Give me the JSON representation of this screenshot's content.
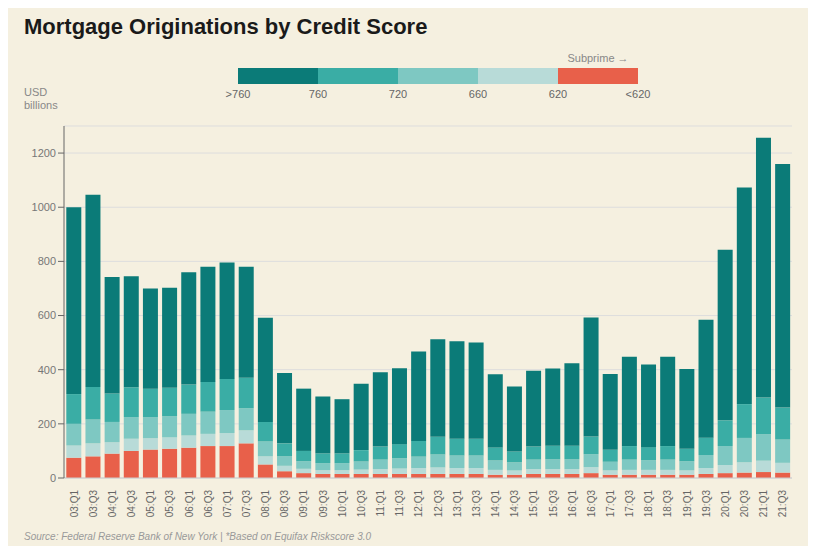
{
  "chart_data": {
    "type": "bar",
    "stacked": true,
    "grid": true,
    "title": "Mortgage Originations by Credit Score",
    "y_label": "USD\nbillions",
    "source": "Source: Federal Reserve Bank of New York | *Based on Equifax Riskscore 3.0",
    "categories": [
      "03:Q1",
      "03:Q3",
      "04:Q1",
      "04:Q3",
      "05:Q1",
      "05:Q3",
      "06:Q1",
      "06:Q3",
      "07:Q1",
      "07:Q3",
      "08:Q1",
      "08:Q3",
      "09:Q1",
      "09:Q3",
      "10:Q1",
      "10:Q3",
      "11:Q1",
      "11:Q3",
      "12:Q1",
      "12:Q3",
      "13:Q1",
      "13:Q3",
      "14:Q1",
      "14:Q3",
      "15:Q1",
      "15:Q3",
      "16:Q1",
      "16:Q3",
      "17:Q1",
      "17:Q3",
      "18:Q1",
      "18:Q3",
      "19:Q1",
      "19:Q3",
      "20:Q1",
      "20:Q3",
      "21:Q1",
      "21:Q3"
    ],
    "series": [
      {
        "color": "#e8604a",
        "values": [
          75,
          80,
          90,
          100,
          105,
          108,
          112,
          118,
          118,
          128,
          50,
          25,
          18,
          15,
          15,
          15,
          15,
          15,
          15,
          15,
          15,
          15,
          12,
          12,
          15,
          15,
          15,
          18,
          12,
          12,
          12,
          12,
          12,
          15,
          18,
          20,
          22,
          20
        ]
      },
      {
        "color": "#b8dbd8",
        "values": [
          45,
          48,
          42,
          45,
          42,
          42,
          45,
          45,
          48,
          48,
          30,
          20,
          16,
          14,
          14,
          16,
          18,
          20,
          22,
          24,
          22,
          22,
          18,
          16,
          18,
          18,
          18,
          22,
          16,
          18,
          18,
          18,
          16,
          22,
          30,
          38,
          42,
          36
        ]
      },
      {
        "color": "#7ec8c2",
        "values": [
          80,
          88,
          75,
          80,
          78,
          78,
          80,
          82,
          85,
          82,
          55,
          35,
          28,
          26,
          26,
          30,
          35,
          38,
          42,
          48,
          46,
          46,
          35,
          30,
          35,
          36,
          36,
          48,
          32,
          38,
          36,
          38,
          34,
          48,
          70,
          90,
          98,
          86
        ]
      },
      {
        "color": "#3aada5",
        "values": [
          110,
          120,
          105,
          110,
          105,
          105,
          108,
          110,
          115,
          112,
          72,
          48,
          38,
          36,
          36,
          42,
          48,
          52,
          58,
          65,
          62,
          62,
          48,
          40,
          48,
          50,
          50,
          65,
          44,
          50,
          48,
          50,
          46,
          64,
          95,
          125,
          135,
          118
        ]
      },
      {
        "color": "#0b7b78",
        "values": [
          690,
          710,
          430,
          410,
          370,
          370,
          415,
          425,
          430,
          410,
          385,
          260,
          230,
          210,
          200,
          245,
          275,
          280,
          330,
          360,
          360,
          355,
          270,
          240,
          280,
          285,
          305,
          440,
          280,
          330,
          305,
          330,
          295,
          435,
          630,
          800,
          960,
          900
        ]
      }
    ],
    "color_scale_labels": [
      ">760",
      "760",
      "720",
      "660",
      "620",
      "<620"
    ],
    "annotations": [
      "Subprime →"
    ],
    "ylim": [
      0,
      1300
    ],
    "yticks": [
      0,
      200,
      400,
      600,
      800,
      1000,
      1200
    ]
  }
}
